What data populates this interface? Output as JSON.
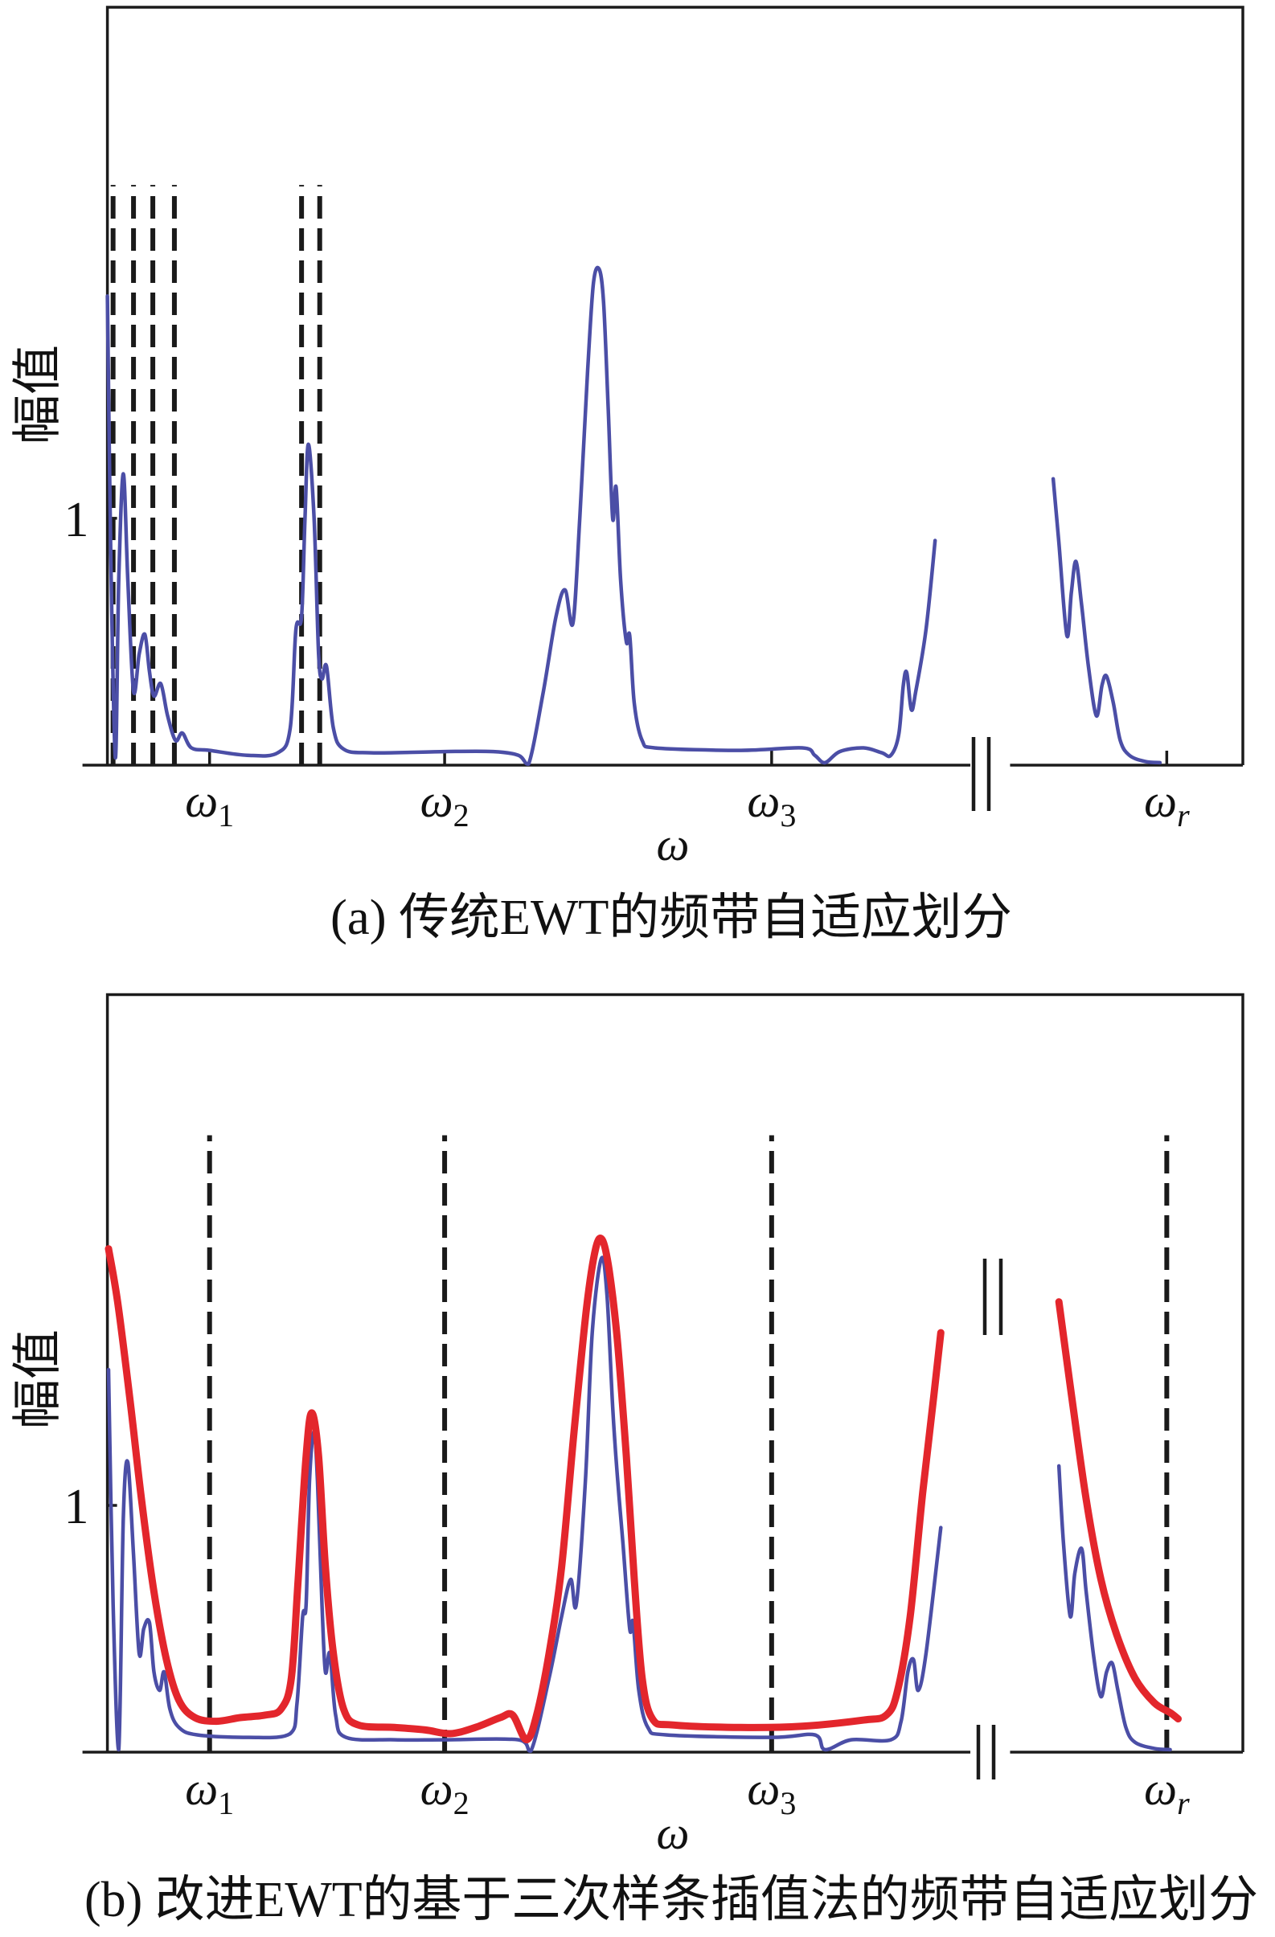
{
  "chart_data": [
    {
      "type": "line",
      "caption": "(a) 传统EWT的频带自适应划分",
      "xlabel": "ω",
      "ylabel": "幅值",
      "xlim": [
        0,
        100
      ],
      "ylim": [
        0,
        3.07
      ],
      "grid": false,
      "y_ticks": [
        {
          "value": 1,
          "label": "1"
        }
      ],
      "x_ticks": [
        {
          "value": 9.0,
          "symbol": "ω",
          "sub": "1"
        },
        {
          "value": 29.7,
          "symbol": "ω",
          "sub": "2"
        },
        {
          "value": 58.5,
          "symbol": "ω",
          "sub": "3"
        },
        {
          "value": 93.3,
          "symbol": "ω",
          "sub": "r"
        }
      ],
      "axis_break": [
        76,
        79.5
      ],
      "boundaries": {
        "x": [
          0.5,
          2.3,
          4.0,
          5.9,
          17.1,
          18.7
        ],
        "top": 2.35,
        "color": "#1a1a1a"
      },
      "series": [
        {
          "color": "#4b4ea6",
          "segments": [
            [
              [
                0,
                1.9
              ],
              [
                0.3,
                0.85
              ],
              [
                0.7,
                0.03
              ],
              [
                1.0,
                0.75
              ],
              [
                1.4,
                1.18
              ],
              [
                1.8,
                0.75
              ],
              [
                2.3,
                0.3
              ],
              [
                2.8,
                0.45
              ],
              [
                3.3,
                0.53
              ],
              [
                3.7,
                0.38
              ],
              [
                4.1,
                0.28
              ],
              [
                4.7,
                0.33
              ],
              [
                5.3,
                0.2
              ],
              [
                6.0,
                0.1
              ],
              [
                6.6,
                0.13
              ],
              [
                7.4,
                0.07
              ],
              [
                9.0,
                0.06
              ],
              [
                12.3,
                0.04
              ],
              [
                15.0,
                0.05
              ],
              [
                16.1,
                0.15
              ],
              [
                16.6,
                0.55
              ],
              [
                17.1,
                0.6
              ],
              [
                17.4,
                1.0
              ],
              [
                17.7,
                1.3
              ],
              [
                18.2,
                1.0
              ],
              [
                18.6,
                0.45
              ],
              [
                18.9,
                0.35
              ],
              [
                19.3,
                0.4
              ],
              [
                19.9,
                0.15
              ],
              [
                20.8,
                0.065
              ],
              [
                23.2,
                0.05
              ],
              [
                29.7,
                0.055
              ],
              [
                34.0,
                0.055
              ],
              [
                36.2,
                0.04
              ],
              [
                37.1,
                0.005
              ],
              [
                38.4,
                0.3
              ],
              [
                39.5,
                0.6
              ],
              [
                40.3,
                0.71
              ],
              [
                41.0,
                0.575
              ],
              [
                41.6,
                1.0
              ],
              [
                42.3,
                1.6
              ],
              [
                42.8,
                1.95
              ],
              [
                43.3,
                2.01
              ],
              [
                43.7,
                1.875
              ],
              [
                44.1,
                1.45
              ],
              [
                44.5,
                1.0
              ],
              [
                44.8,
                1.125
              ],
              [
                45.2,
                0.75
              ],
              [
                45.7,
                0.5
              ],
              [
                46.0,
                0.525
              ],
              [
                46.4,
                0.25
              ],
              [
                47.1,
                0.1
              ],
              [
                48.2,
                0.07
              ],
              [
                55.8,
                0.06
              ],
              [
                61.2,
                0.07
              ],
              [
                62.3,
                0.04
              ],
              [
                63.2,
                0.01
              ],
              [
                64.5,
                0.055
              ],
              [
                66.6,
                0.07
              ],
              [
                68.2,
                0.05
              ],
              [
                69.0,
                0.04
              ],
              [
                69.7,
                0.125
              ],
              [
                70.1,
                0.325
              ],
              [
                70.4,
                0.375
              ],
              [
                70.8,
                0.225
              ],
              [
                71.2,
                0.3
              ],
              [
                72.1,
                0.55
              ],
              [
                72.9,
                0.91
              ]
            ],
            [
              [
                83.3,
                1.16
              ],
              [
                83.8,
                0.9
              ],
              [
                84.5,
                0.525
              ],
              [
                84.9,
                0.7
              ],
              [
                85.3,
                0.825
              ],
              [
                85.8,
                0.65
              ],
              [
                86.4,
                0.4
              ],
              [
                87.1,
                0.2
              ],
              [
                87.6,
                0.325
              ],
              [
                88.0,
                0.36
              ],
              [
                88.6,
                0.25
              ],
              [
                89.2,
                0.1
              ],
              [
                90.0,
                0.04
              ],
              [
                91.4,
                0.015
              ],
              [
                92.7,
                0.01
              ]
            ]
          ]
        }
      ]
    },
    {
      "type": "line",
      "caption": "(b) 改进EWT的基于三次样条插值法的频带自适应划分",
      "xlabel": "ω",
      "ylabel": "幅值",
      "xlim": [
        0,
        100
      ],
      "ylim": [
        0,
        3.07
      ],
      "grid": false,
      "y_ticks": [
        {
          "value": 1,
          "label": "1"
        }
      ],
      "x_ticks": [
        {
          "value": 9.0,
          "symbol": "ω",
          "sub": "1"
        },
        {
          "value": 29.7,
          "symbol": "ω",
          "sub": "2"
        },
        {
          "value": 58.5,
          "symbol": "ω",
          "sub": "3"
        },
        {
          "value": 93.3,
          "symbol": "ω",
          "sub": "r"
        }
      ],
      "axis_break": [
        76,
        79.5
      ],
      "boundaries": {
        "x": [
          9.0,
          29.7,
          58.5,
          93.3
        ],
        "top": 2.5,
        "color": "#1a1a1a"
      },
      "series": [
        {
          "color": "#4b4ea6",
          "segments": [
            [
              [
                0.1,
                1.55
              ],
              [
                0.5,
                0.6
              ],
              [
                1.0,
                0.01
              ],
              [
                1.4,
                0.95
              ],
              [
                1.8,
                1.175
              ],
              [
                2.3,
                0.8
              ],
              [
                2.8,
                0.4
              ],
              [
                3.2,
                0.5
              ],
              [
                3.7,
                0.525
              ],
              [
                4.1,
                0.325
              ],
              [
                4.6,
                0.25
              ],
              [
                5.0,
                0.325
              ],
              [
                5.5,
                0.175
              ],
              [
                6.3,
                0.1
              ],
              [
                7.9,
                0.07
              ],
              [
                12.3,
                0.06
              ],
              [
                16.1,
                0.075
              ],
              [
                16.7,
                0.2
              ],
              [
                17.2,
                0.55
              ],
              [
                17.5,
                0.6
              ],
              [
                17.8,
                1.1
              ],
              [
                18.2,
                1.3
              ],
              [
                18.5,
                1.1
              ],
              [
                18.9,
                0.6
              ],
              [
                19.2,
                0.325
              ],
              [
                19.6,
                0.4
              ],
              [
                20.1,
                0.15
              ],
              [
                21.0,
                0.06
              ],
              [
                25.3,
                0.05
              ],
              [
                29.7,
                0.05
              ],
              [
                36.2,
                0.05
              ],
              [
                37.3,
                0.005
              ],
              [
                38.9,
                0.3
              ],
              [
                40.0,
                0.55
              ],
              [
                40.8,
                0.7
              ],
              [
                41.3,
                0.6
              ],
              [
                42.1,
                1.1
              ],
              [
                42.7,
                1.7
              ],
              [
                43.5,
                2.0
              ],
              [
                44.0,
                1.85
              ],
              [
                44.5,
                1.4
              ],
              [
                44.9,
                1.125
              ],
              [
                45.4,
                0.85
              ],
              [
                46.0,
                0.5
              ],
              [
                46.3,
                0.525
              ],
              [
                46.8,
                0.25
              ],
              [
                47.6,
                0.1
              ],
              [
                49.2,
                0.07
              ],
              [
                58.5,
                0.06
              ],
              [
                62.3,
                0.07
              ],
              [
                63.2,
                0.01
              ],
              [
                65.5,
                0.05
              ],
              [
                69.0,
                0.05
              ],
              [
                69.9,
                0.125
              ],
              [
                70.5,
                0.325
              ],
              [
                71.0,
                0.375
              ],
              [
                71.4,
                0.25
              ],
              [
                72.1,
                0.4
              ],
              [
                73.4,
                0.91
              ]
            ],
            [
              [
                83.8,
                1.16
              ],
              [
                84.2,
                0.85
              ],
              [
                84.8,
                0.55
              ],
              [
                85.2,
                0.725
              ],
              [
                85.8,
                0.825
              ],
              [
                86.2,
                0.65
              ],
              [
                86.9,
                0.375
              ],
              [
                87.5,
                0.225
              ],
              [
                88.0,
                0.325
              ],
              [
                88.5,
                0.36
              ],
              [
                89.0,
                0.25
              ],
              [
                89.7,
                0.1
              ],
              [
                90.5,
                0.04
              ],
              [
                92.2,
                0.015
              ],
              [
                93.6,
                0.01
              ]
            ]
          ]
        },
        {
          "color": "#e3262c",
          "segments": [
            [
              [
                0.1,
                2.04
              ],
              [
                0.9,
                1.825
              ],
              [
                2.0,
                1.425
              ],
              [
                3.0,
                1.025
              ],
              [
                4.1,
                0.65
              ],
              [
                5.2,
                0.375
              ],
              [
                6.3,
                0.21
              ],
              [
                7.7,
                0.14
              ],
              [
                9.6,
                0.125
              ],
              [
                11.7,
                0.14
              ],
              [
                13.9,
                0.15
              ],
              [
                15.3,
                0.175
              ],
              [
                16.2,
                0.3
              ],
              [
                16.8,
                0.7
              ],
              [
                17.5,
                1.2
              ],
              [
                18.0,
                1.375
              ],
              [
                18.6,
                1.2
              ],
              [
                19.2,
                0.75
              ],
              [
                19.9,
                0.4
              ],
              [
                20.8,
                0.175
              ],
              [
                22.1,
                0.11
              ],
              [
                25.3,
                0.1
              ],
              [
                28.0,
                0.09
              ],
              [
                30.2,
                0.075
              ],
              [
                32.4,
                0.1
              ],
              [
                34.6,
                0.14
              ],
              [
                35.7,
                0.15
              ],
              [
                36.9,
                0.05
              ],
              [
                37.8,
                0.15
              ],
              [
                38.9,
                0.4
              ],
              [
                40.0,
                0.75
              ],
              [
                41.1,
                1.3
              ],
              [
                42.2,
                1.8
              ],
              [
                43.0,
                2.04
              ],
              [
                43.6,
                2.075
              ],
              [
                44.2,
                1.95
              ],
              [
                44.9,
                1.675
              ],
              [
                45.7,
                1.2
              ],
              [
                46.4,
                0.7
              ],
              [
                47.1,
                0.3
              ],
              [
                48.0,
                0.135
              ],
              [
                49.8,
                0.11
              ],
              [
                55.8,
                0.1
              ],
              [
                61.2,
                0.105
              ],
              [
                66.6,
                0.13
              ],
              [
                68.6,
                0.15
              ],
              [
                69.6,
                0.25
              ],
              [
                70.7,
                0.55
              ],
              [
                71.8,
                1.05
              ],
              [
                72.8,
                1.45
              ],
              [
                73.4,
                1.7
              ]
            ],
            [
              [
                83.8,
                1.825
              ],
              [
                84.9,
                1.45
              ],
              [
                86.2,
                1.025
              ],
              [
                87.5,
                0.7
              ],
              [
                88.9,
                0.475
              ],
              [
                90.5,
                0.3
              ],
              [
                92.2,
                0.2
              ],
              [
                93.6,
                0.16
              ],
              [
                94.3,
                0.135
              ]
            ]
          ]
        }
      ]
    }
  ]
}
